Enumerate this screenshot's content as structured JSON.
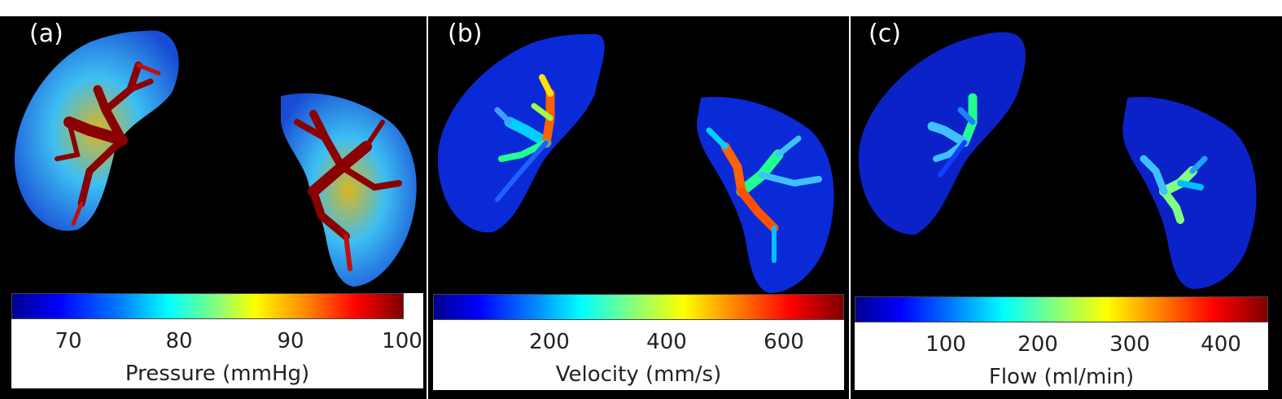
{
  "panels": [
    {
      "label": "(a)",
      "colorbar": {
        "ticks": [
          "70",
          "80",
          "90",
          "100"
        ],
        "label": "Pressure (mmHg)"
      }
    },
    {
      "label": "(b)",
      "colorbar": {
        "ticks": [
          "200",
          "400",
          "600"
        ],
        "label": "Velocity (mm/s)"
      }
    },
    {
      "label": "(c)",
      "colorbar": {
        "ticks": [
          "100",
          "200",
          "300",
          "400"
        ],
        "label": "Flow (ml/min)"
      }
    }
  ],
  "colormap": "jet",
  "background": "#000000"
}
